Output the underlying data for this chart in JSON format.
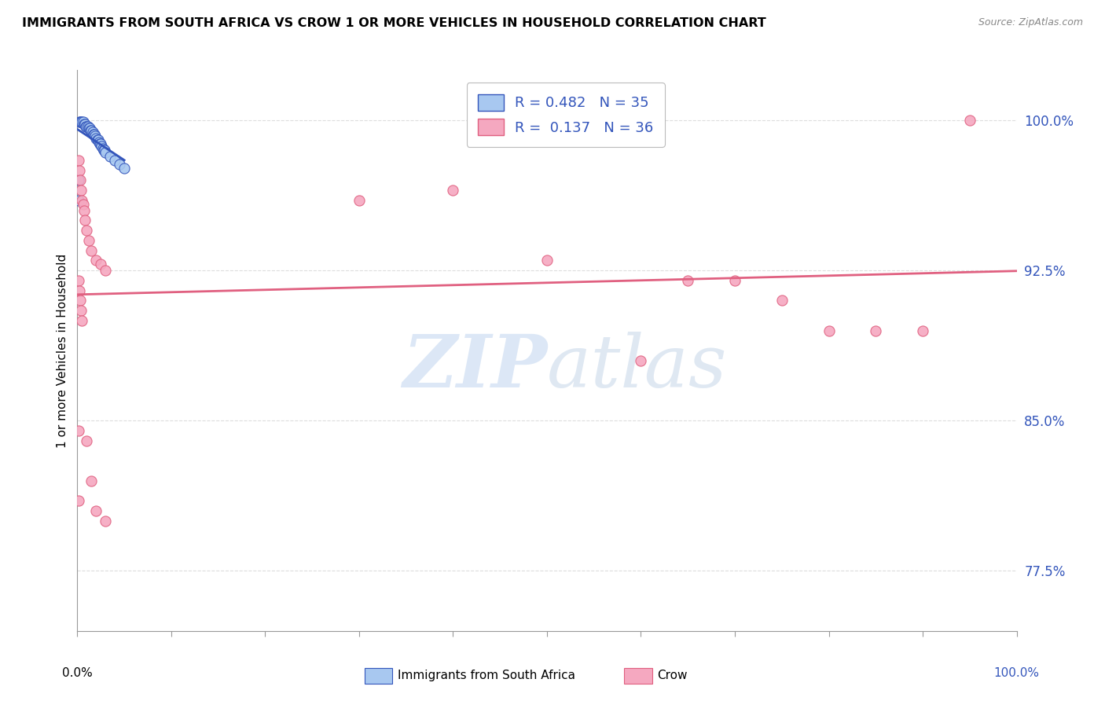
{
  "title": "IMMIGRANTS FROM SOUTH AFRICA VS CROW 1 OR MORE VEHICLES IN HOUSEHOLD CORRELATION CHART",
  "source": "Source: ZipAtlas.com",
  "ylabel": "1 or more Vehicles in Household",
  "ytick_labels": [
    "100.0%",
    "92.5%",
    "85.0%",
    "77.5%"
  ],
  "ytick_values": [
    1.0,
    0.925,
    0.85,
    0.775
  ],
  "legend1_label": "Immigrants from South Africa",
  "legend2_label": "Crow",
  "R1": 0.482,
  "N1": 35,
  "R2": 0.137,
  "N2": 36,
  "color_blue": "#A8C8F0",
  "color_pink": "#F5A8C0",
  "line_blue": "#3355BB",
  "line_pink": "#E06080",
  "blue_scatter": [
    [
      0.002,
      0.999
    ],
    [
      0.003,
      0.999
    ],
    [
      0.004,
      0.999
    ],
    [
      0.005,
      0.999
    ],
    [
      0.006,
      0.999
    ],
    [
      0.007,
      0.998
    ],
    [
      0.008,
      0.998
    ],
    [
      0.009,
      0.997
    ],
    [
      0.01,
      0.997
    ],
    [
      0.011,
      0.997
    ],
    [
      0.012,
      0.996
    ],
    [
      0.013,
      0.996
    ],
    [
      0.014,
      0.995
    ],
    [
      0.015,
      0.995
    ],
    [
      0.016,
      0.994
    ],
    [
      0.017,
      0.993
    ],
    [
      0.018,
      0.993
    ],
    [
      0.019,
      0.992
    ],
    [
      0.02,
      0.991
    ],
    [
      0.021,
      0.99
    ],
    [
      0.022,
      0.99
    ],
    [
      0.023,
      0.989
    ],
    [
      0.024,
      0.988
    ],
    [
      0.025,
      0.988
    ],
    [
      0.026,
      0.987
    ],
    [
      0.027,
      0.986
    ],
    [
      0.028,
      0.985
    ],
    [
      0.029,
      0.985
    ],
    [
      0.03,
      0.984
    ],
    [
      0.035,
      0.982
    ],
    [
      0.04,
      0.98
    ],
    [
      0.045,
      0.978
    ],
    [
      0.05,
      0.976
    ],
    [
      0.001,
      0.97
    ],
    [
      0.001,
      0.96
    ]
  ],
  "pink_scatter": [
    [
      0.001,
      0.98
    ],
    [
      0.002,
      0.975
    ],
    [
      0.003,
      0.97
    ],
    [
      0.004,
      0.965
    ],
    [
      0.005,
      0.96
    ],
    [
      0.006,
      0.958
    ],
    [
      0.007,
      0.955
    ],
    [
      0.008,
      0.95
    ],
    [
      0.01,
      0.945
    ],
    [
      0.012,
      0.94
    ],
    [
      0.015,
      0.935
    ],
    [
      0.02,
      0.93
    ],
    [
      0.025,
      0.928
    ],
    [
      0.03,
      0.925
    ],
    [
      0.001,
      0.92
    ],
    [
      0.002,
      0.915
    ],
    [
      0.003,
      0.91
    ],
    [
      0.004,
      0.905
    ],
    [
      0.005,
      0.9
    ],
    [
      0.001,
      0.845
    ],
    [
      0.01,
      0.84
    ],
    [
      0.015,
      0.82
    ],
    [
      0.001,
      0.81
    ],
    [
      0.02,
      0.805
    ],
    [
      0.03,
      0.8
    ],
    [
      0.3,
      0.96
    ],
    [
      0.4,
      0.965
    ],
    [
      0.5,
      0.93
    ],
    [
      0.6,
      0.88
    ],
    [
      0.7,
      0.92
    ],
    [
      0.65,
      0.92
    ],
    [
      0.75,
      0.91
    ],
    [
      0.8,
      0.895
    ],
    [
      0.85,
      0.895
    ],
    [
      0.9,
      0.895
    ],
    [
      0.95,
      1.0
    ]
  ],
  "xlim": [
    0.0,
    1.0
  ],
  "ylim": [
    0.745,
    1.025
  ],
  "watermark_zip": "ZIP",
  "watermark_atlas": "atlas",
  "background_color": "#FFFFFF",
  "grid_color": "#DDDDDD"
}
